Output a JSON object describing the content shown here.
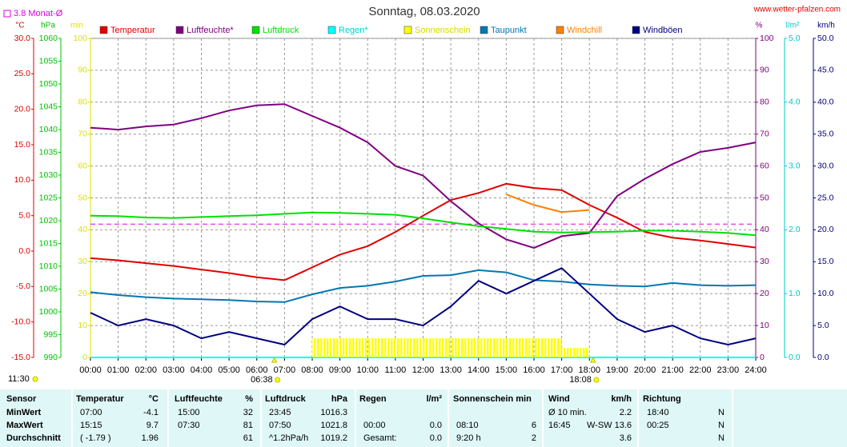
{
  "chart_data": {
    "type": "line",
    "title": "Sonntag, 08.03.2020",
    "source": "www.wetter-pfalzen.com",
    "annotations": {
      "month_avg": "3.8 Monat-Ø",
      "month_avg_value": 3.8,
      "sunrise": "06:38",
      "sunrise_value": 6.633,
      "sunset": "18:08",
      "sunset_value": 18.133,
      "time": "11:30"
    },
    "x": [
      0,
      1,
      2,
      3,
      4,
      5,
      6,
      7,
      8,
      9,
      10,
      11,
      12,
      13,
      14,
      15,
      16,
      17,
      18,
      19,
      20,
      21,
      22,
      23,
      24
    ],
    "xlim": [
      0,
      24
    ],
    "xticks": [
      {
        "value": 0,
        "label": "00:00"
      },
      {
        "value": 1,
        "label": "01:00"
      },
      {
        "value": 2,
        "label": "02:00"
      },
      {
        "value": 3,
        "label": "03:00"
      },
      {
        "value": 4,
        "label": "04:00"
      },
      {
        "value": 5,
        "label": "05:00"
      },
      {
        "value": 6,
        "label": "06:00"
      },
      {
        "value": 7,
        "label": "07:00"
      },
      {
        "value": 8,
        "label": "08:00"
      },
      {
        "value": 9,
        "label": "09:00"
      },
      {
        "value": 10,
        "label": "10:00"
      },
      {
        "value": 11,
        "label": "11:00"
      },
      {
        "value": 12,
        "label": "12:00"
      },
      {
        "value": 13,
        "label": "13:00"
      },
      {
        "value": 14,
        "label": "14:00"
      },
      {
        "value": 15,
        "label": "15:00"
      },
      {
        "value": 16,
        "label": "16:00"
      },
      {
        "value": 17,
        "label": "17:00"
      },
      {
        "value": 18,
        "label": "18:00"
      },
      {
        "value": 19,
        "label": "19:00"
      },
      {
        "value": 20,
        "label": "20:00"
      },
      {
        "value": 21,
        "label": "21:00"
      },
      {
        "value": 22,
        "label": "22:00"
      },
      {
        "value": 23,
        "label": "23:00"
      },
      {
        "value": 24,
        "label": "24:00"
      }
    ],
    "grid": true,
    "axes": [
      {
        "label": "°C",
        "color": "#e00000",
        "lim": [
          -15,
          30
        ],
        "ticks": [
          {
            "value": -15,
            "label": "-15.0"
          },
          {
            "value": -10,
            "label": "-10.0"
          },
          {
            "value": -5,
            "label": "-5.0"
          },
          {
            "value": 0,
            "label": "0.0"
          },
          {
            "value": 5,
            "label": "5.0"
          },
          {
            "value": 10,
            "label": "10.0"
          },
          {
            "value": 15,
            "label": "15.0"
          },
          {
            "value": 20,
            "label": "20.0"
          },
          {
            "value": 25,
            "label": "25.0"
          },
          {
            "value": 30,
            "label": "30.0"
          }
        ]
      },
      {
        "label": "hPa",
        "color": "#00c000",
        "lim": [
          990,
          1060
        ],
        "ticks": [
          990,
          995,
          1000,
          1005,
          1010,
          1015,
          1020,
          1025,
          1030,
          1035,
          1040,
          1045,
          1050,
          1055,
          1060
        ]
      },
      {
        "label": "min",
        "color": "#e0e000",
        "lim": [
          0,
          100
        ],
        "ticks": [
          0,
          10,
          20,
          30,
          40,
          50,
          60,
          70,
          80,
          90,
          100
        ]
      },
      {
        "label": "%",
        "color": "#800080",
        "lim": [
          0,
          100
        ],
        "ticks": [
          0,
          10,
          20,
          30,
          40,
          50,
          60,
          70,
          80,
          90,
          100
        ]
      },
      {
        "label": "l/m²",
        "color": "#00c8c8",
        "lim": [
          0,
          5
        ],
        "ticks": [
          {
            "value": 0,
            "label": "0.0"
          },
          {
            "value": 1,
            "label": "1.0"
          },
          {
            "value": 2,
            "label": "2.0"
          },
          {
            "value": 3,
            "label": "3.0"
          },
          {
            "value": 4,
            "label": "4.0"
          },
          {
            "value": 5,
            "label": "5.0"
          }
        ]
      },
      {
        "label": "km/h",
        "color": "#000080",
        "lim": [
          0,
          50
        ],
        "ticks": [
          {
            "value": 0,
            "label": "0.0"
          },
          {
            "value": 5,
            "label": "5.0"
          },
          {
            "value": 10,
            "label": "10.0"
          },
          {
            "value": 15,
            "label": "15.0"
          },
          {
            "value": 20,
            "label": "20.0"
          },
          {
            "value": 25,
            "label": "25.0"
          },
          {
            "value": 30,
            "label": "30.0"
          },
          {
            "value": 35,
            "label": "35.0"
          },
          {
            "value": 40,
            "label": "40.0"
          },
          {
            "value": 45,
            "label": "45.0"
          },
          {
            "value": 50,
            "label": "50.0"
          }
        ]
      }
    ],
    "series": [
      {
        "name": "Temperatur",
        "color": "#e00000",
        "axis": 0,
        "values": [
          -1.0,
          -1.3,
          -1.7,
          -2.1,
          -2.6,
          -3.1,
          -3.7,
          -4.1,
          -2.3,
          -0.5,
          0.7,
          2.7,
          5.0,
          7.2,
          8.2,
          9.5,
          8.9,
          8.6,
          6.5,
          4.7,
          2.7,
          1.9,
          1.5,
          1.0,
          0.5
        ]
      },
      {
        "name": "Luftfeuchte*",
        "color": "#800080",
        "axis": 3,
        "values": [
          72,
          71.4,
          72.4,
          73,
          75,
          77.4,
          79,
          79.4,
          75.7,
          72,
          67.4,
          60,
          57,
          49,
          42,
          37,
          34.3,
          38,
          39,
          50.6,
          56,
          60.6,
          64.4,
          65.7,
          67.4
        ]
      },
      {
        "name": "Luftdruck",
        "color": "#00e000",
        "axis": 1,
        "values": [
          1021.1,
          1021.0,
          1020.7,
          1020.6,
          1020.8,
          1021.0,
          1021.2,
          1021.5,
          1021.8,
          1021.7,
          1021.5,
          1021.3,
          1020.5,
          1019.6,
          1018.8,
          1018.2,
          1017.6,
          1017.4,
          1017.5,
          1017.6,
          1017.8,
          1017.8,
          1017.6,
          1017.3,
          1016.8
        ]
      },
      {
        "name": "Regen*",
        "color": "#00ffff",
        "axis": 4,
        "values": [
          0,
          0,
          0,
          0,
          0,
          0,
          0,
          0,
          0,
          0,
          0,
          0,
          0,
          0,
          0,
          0,
          0,
          0,
          0,
          0,
          0,
          0,
          0,
          0,
          0
        ]
      },
      {
        "name": "Sonnenschein",
        "color": "#ffff00",
        "axis": 2,
        "bars": true,
        "values": [
          0,
          0,
          0,
          0,
          0,
          0,
          0,
          0,
          6,
          6,
          6,
          6,
          6,
          6,
          6,
          6,
          6,
          3,
          0,
          0,
          0,
          0,
          0,
          0,
          null
        ]
      },
      {
        "name": "Taupunkt",
        "color": "#0078b4",
        "axis": 0,
        "values": [
          -5.8,
          -6.2,
          -6.5,
          -6.7,
          -6.8,
          -6.9,
          -7.1,
          -7.2,
          -6.1,
          -5.2,
          -4.9,
          -4.3,
          -3.5,
          -3.4,
          -2.7,
          -3.0,
          -4.1,
          -4.3,
          -4.7,
          -4.9,
          -5.0,
          -4.5,
          -4.8,
          -4.9,
          -4.8
        ]
      },
      {
        "name": "Windchill",
        "color": "#ff8000",
        "axis": 0,
        "values": [
          null,
          null,
          null,
          null,
          null,
          null,
          null,
          null,
          null,
          null,
          null,
          null,
          null,
          null,
          null,
          8.0,
          6.5,
          5.5,
          5.8,
          null,
          null,
          null,
          null,
          null,
          null
        ]
      },
      {
        "name": "Windböen",
        "color": "#000080",
        "axis": 5,
        "values": [
          7,
          5,
          6,
          5,
          3,
          4,
          3,
          2,
          6,
          8,
          6,
          6,
          5,
          8,
          12,
          10,
          12,
          14,
          10,
          6,
          4,
          5,
          3,
          2,
          3
        ]
      }
    ]
  },
  "table": {
    "header": [
      "Sensor",
      "Temperatur",
      "°C",
      "Luftfeuchte",
      "%",
      "Luftdruck",
      "hPa",
      "Regen",
      "l/m²",
      "Sonnenschein min",
      "Wind",
      "km/h",
      "Richtung"
    ],
    "rows": [
      [
        "MinWert",
        "07:00",
        "-4.1",
        "15:00",
        "32",
        "23:45",
        "1016.3",
        null,
        null,
        null,
        null,
        "Ø 10 min.",
        "2.2",
        "18:40",
        "N"
      ],
      [
        "MaxWert",
        "15:15",
        "9.7",
        "07:30",
        "81",
        "07:50",
        "1021.8",
        "00:00",
        "0.0",
        "08:10",
        "6",
        "16:45",
        "W-SW 13.6",
        "00:25",
        "N"
      ],
      [
        "Durchschnitt",
        "( -1.79 )",
        "1.96",
        null,
        "61",
        "^1.2hPa/h",
        "1019.2",
        "Gesamt:",
        "0.0",
        "9:20 h",
        "2",
        null,
        "3.6",
        null,
        "N"
      ]
    ]
  }
}
